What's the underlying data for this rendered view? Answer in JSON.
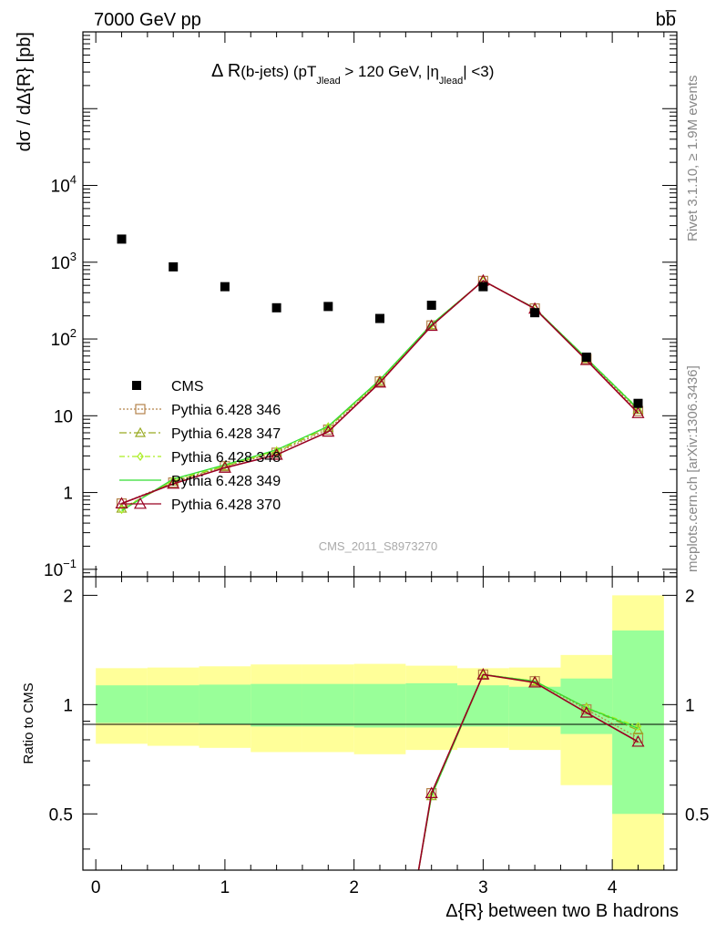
{
  "header": {
    "energy_label": "7000 GeV pp",
    "process_label": "bb̅"
  },
  "chart_data": {
    "type": "scatter",
    "title_main": "Δ R",
    "title_rest": "(b-jets) (pT",
    "title_sub1": "Jlead",
    "title_mid": " >  120 GeV, |η",
    "title_sub2": "Jlead",
    "title_end": "| <3)",
    "ylabel": "dσ / dΔ{R} [pb]",
    "ratio_ylabel": "Ratio to CMS",
    "xlabel": "Δ{R} between two B hadrons",
    "watermark": "CMS_2011_S8973270",
    "side_top": "Rivet 3.1.10, ≥ 1.9M events",
    "side_bottom": "mcplots.cern.ch [arXiv:1306.3436]",
    "xlim": [
      -0.1,
      4.5
    ],
    "ylim_log": [
      0.08,
      1000000
    ],
    "ratio_ylim": [
      0.35,
      2.25
    ],
    "log_y": true,
    "x_ticks": [
      "0",
      "1",
      "2",
      "3",
      "4"
    ],
    "y_ticks_main": [
      {
        "v": 0.1,
        "base": "10",
        "exp": "−1"
      },
      {
        "v": 1,
        "base": "1",
        "exp": ""
      },
      {
        "v": 10,
        "base": "10",
        "exp": ""
      },
      {
        "v": 100,
        "base": "10",
        "exp": "2"
      },
      {
        "v": 1000,
        "base": "10",
        "exp": "3"
      },
      {
        "v": 10000,
        "base": "10",
        "exp": "4"
      }
    ],
    "y_ticks_ratio": [
      "0.5",
      "1",
      "2"
    ],
    "x": [
      0.2,
      0.6,
      1.0,
      1.4,
      1.8,
      2.2,
      2.6,
      3.0,
      3.4,
      3.8,
      4.2
    ],
    "bin_edges": [
      0.0,
      0.4,
      0.8,
      1.2,
      1.6,
      2.0,
      2.4,
      2.8,
      3.2,
      3.6,
      4.0,
      4.4
    ],
    "data_series": {
      "name": "CMS",
      "values": [
        2000,
        870,
        480,
        255,
        265,
        185,
        275,
        480,
        220,
        58,
        14.5
      ]
    },
    "band_stat": [
      [
        0.89,
        1.13
      ],
      [
        0.89,
        1.13
      ],
      [
        0.88,
        1.135
      ],
      [
        0.87,
        1.14
      ],
      [
        0.87,
        1.14
      ],
      [
        0.865,
        1.14
      ],
      [
        0.865,
        1.145
      ],
      [
        0.87,
        1.13
      ],
      [
        0.87,
        1.12
      ],
      [
        0.83,
        1.18
      ],
      [
        0.5,
        1.6
      ]
    ],
    "band_total": [
      [
        0.78,
        1.26
      ],
      [
        0.77,
        1.265
      ],
      [
        0.76,
        1.275
      ],
      [
        0.74,
        1.29
      ],
      [
        0.74,
        1.29
      ],
      [
        0.73,
        1.295
      ],
      [
        0.75,
        1.28
      ],
      [
        0.76,
        1.26
      ],
      [
        0.75,
        1.265
      ],
      [
        0.6,
        1.37
      ],
      [
        0.3,
        2.0
      ]
    ],
    "series": [
      {
        "name": "Pythia 6.428 346",
        "color": "#b5834b",
        "dash": "2,2",
        "marker": "square",
        "values": [
          0.72,
          1.35,
          2.2,
          3.3,
          6.6,
          28,
          150,
          570,
          250,
          55,
          11.5
        ]
      },
      {
        "name": "Pythia 6.428 347",
        "color": "#99aa22",
        "dash": "8,3,2,3",
        "marker": "triangle",
        "values": [
          0.62,
          1.4,
          2.2,
          3.4,
          7.0,
          28.5,
          152,
          575,
          252,
          56,
          12.0
        ]
      },
      {
        "name": "Pythia 6.428 348",
        "color": "#aaee22",
        "dash": "6,3,2,3",
        "marker": "diamond",
        "values": [
          0.6,
          1.45,
          2.25,
          3.5,
          7.2,
          29,
          155,
          572,
          250,
          56,
          12.5
        ]
      },
      {
        "name": "Pythia 6.428 349",
        "color": "#33dd33",
        "dash": "",
        "marker": "none",
        "values": [
          0.58,
          1.5,
          2.3,
          3.6,
          7.3,
          29.5,
          155,
          570,
          252,
          56,
          12.3
        ]
      },
      {
        "name": "Pythia 6.428 370",
        "color": "#990022",
        "dash": "",
        "marker": "triangle-open",
        "values": [
          0.72,
          1.3,
          2.1,
          3.1,
          6.2,
          27,
          148,
          575,
          248,
          53,
          10.8
        ]
      }
    ],
    "ratio_series": [
      {
        "values": [
          null,
          null,
          null,
          null,
          null,
          null,
          0.57,
          1.21,
          1.16,
          0.97,
          0.81
        ]
      },
      {
        "values": [
          null,
          null,
          null,
          null,
          null,
          null,
          0.56,
          1.21,
          1.16,
          0.98,
          0.85
        ]
      },
      {
        "values": [
          null,
          null,
          null,
          null,
          null,
          null,
          0.56,
          1.21,
          1.16,
          0.98,
          0.87
        ]
      },
      {
        "values": [
          null,
          null,
          null,
          null,
          null,
          null,
          0.56,
          1.21,
          1.16,
          0.98,
          0.86
        ]
      },
      {
        "values": [
          null,
          null,
          null,
          null,
          null,
          null,
          0.57,
          1.21,
          1.15,
          0.95,
          0.79
        ]
      }
    ]
  }
}
